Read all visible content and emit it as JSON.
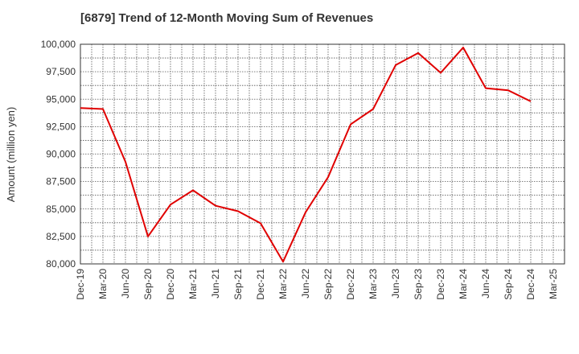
{
  "chart_data": {
    "type": "line",
    "title": "[6879]  Trend of 12-Month Moving Sum of Revenues",
    "xlabel": "",
    "ylabel": "Amount (million yen)",
    "ylim": [
      80000,
      100000
    ],
    "grid": true,
    "y_ticks": [
      "80,000",
      "82,500",
      "85,000",
      "87,500",
      "90,000",
      "92,500",
      "95,000",
      "97,500",
      "100,000"
    ],
    "x_ticks": [
      "Dec-19",
      "Mar-20",
      "Jun-20",
      "Sep-20",
      "Dec-20",
      "Mar-21",
      "Jun-21",
      "Sep-21",
      "Dec-21",
      "Mar-22",
      "Jun-22",
      "Sep-22",
      "Dec-22",
      "Mar-23",
      "Jun-23",
      "Sep-23",
      "Dec-23",
      "Mar-24",
      "Jun-24",
      "Sep-24",
      "Dec-24",
      "Mar-25"
    ],
    "series": [
      {
        "color": "#e00000",
        "x": [
          "Dec-19",
          "Mar-20",
          "Jun-20",
          "Sep-20",
          "Dec-20",
          "Mar-21",
          "Jun-21",
          "Sep-21",
          "Dec-21",
          "Mar-22",
          "Jun-22",
          "Sep-22",
          "Dec-22",
          "Mar-23",
          "Jun-23",
          "Sep-23",
          "Dec-23",
          "Mar-24",
          "Jun-24",
          "Sep-24",
          "Dec-24"
        ],
        "values": [
          94200,
          94100,
          89300,
          82500,
          85400,
          86700,
          85300,
          84800,
          83700,
          80200,
          84700,
          87900,
          92700,
          94100,
          98100,
          99200,
          97400,
          99700,
          96000,
          95800,
          94800
        ]
      }
    ]
  }
}
